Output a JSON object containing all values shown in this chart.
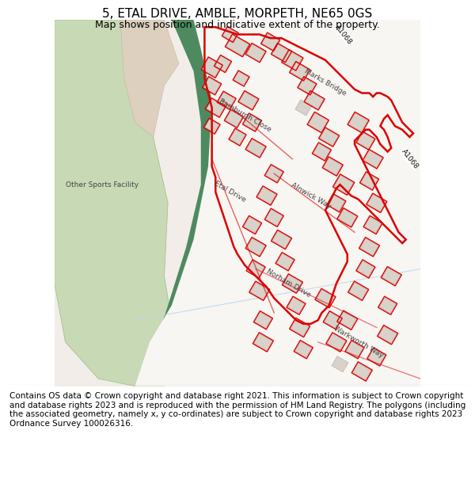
{
  "title": "5, ETAL DRIVE, AMBLE, MORPETH, NE65 0GS",
  "subtitle": "Map shows position and indicative extent of the property.",
  "footer": "Contains OS data © Crown copyright and database right 2021. This information is subject to Crown copyright and database rights 2023 and is reproduced with the permission of HM Land Registry. The polygons (including the associated geometry, namely x, y co-ordinates) are subject to Crown copyright and database rights 2023 Ordnance Survey 100026316.",
  "bg_color": "#ffffff",
  "map_bg": "#f2ede8",
  "green_area_color": "#c8d9b5",
  "red_outline": "#dd0000",
  "green_band_color": "#4e8a60",
  "road_label_color": "#444444",
  "a_road_color": "#6aaa72",
  "water_line_color": "#b8d4e8",
  "tan_color": "#ddd0be",
  "white_estate": "#f8f6f3",
  "title_fontsize": 11,
  "subtitle_fontsize": 9,
  "footer_fontsize": 7.5
}
